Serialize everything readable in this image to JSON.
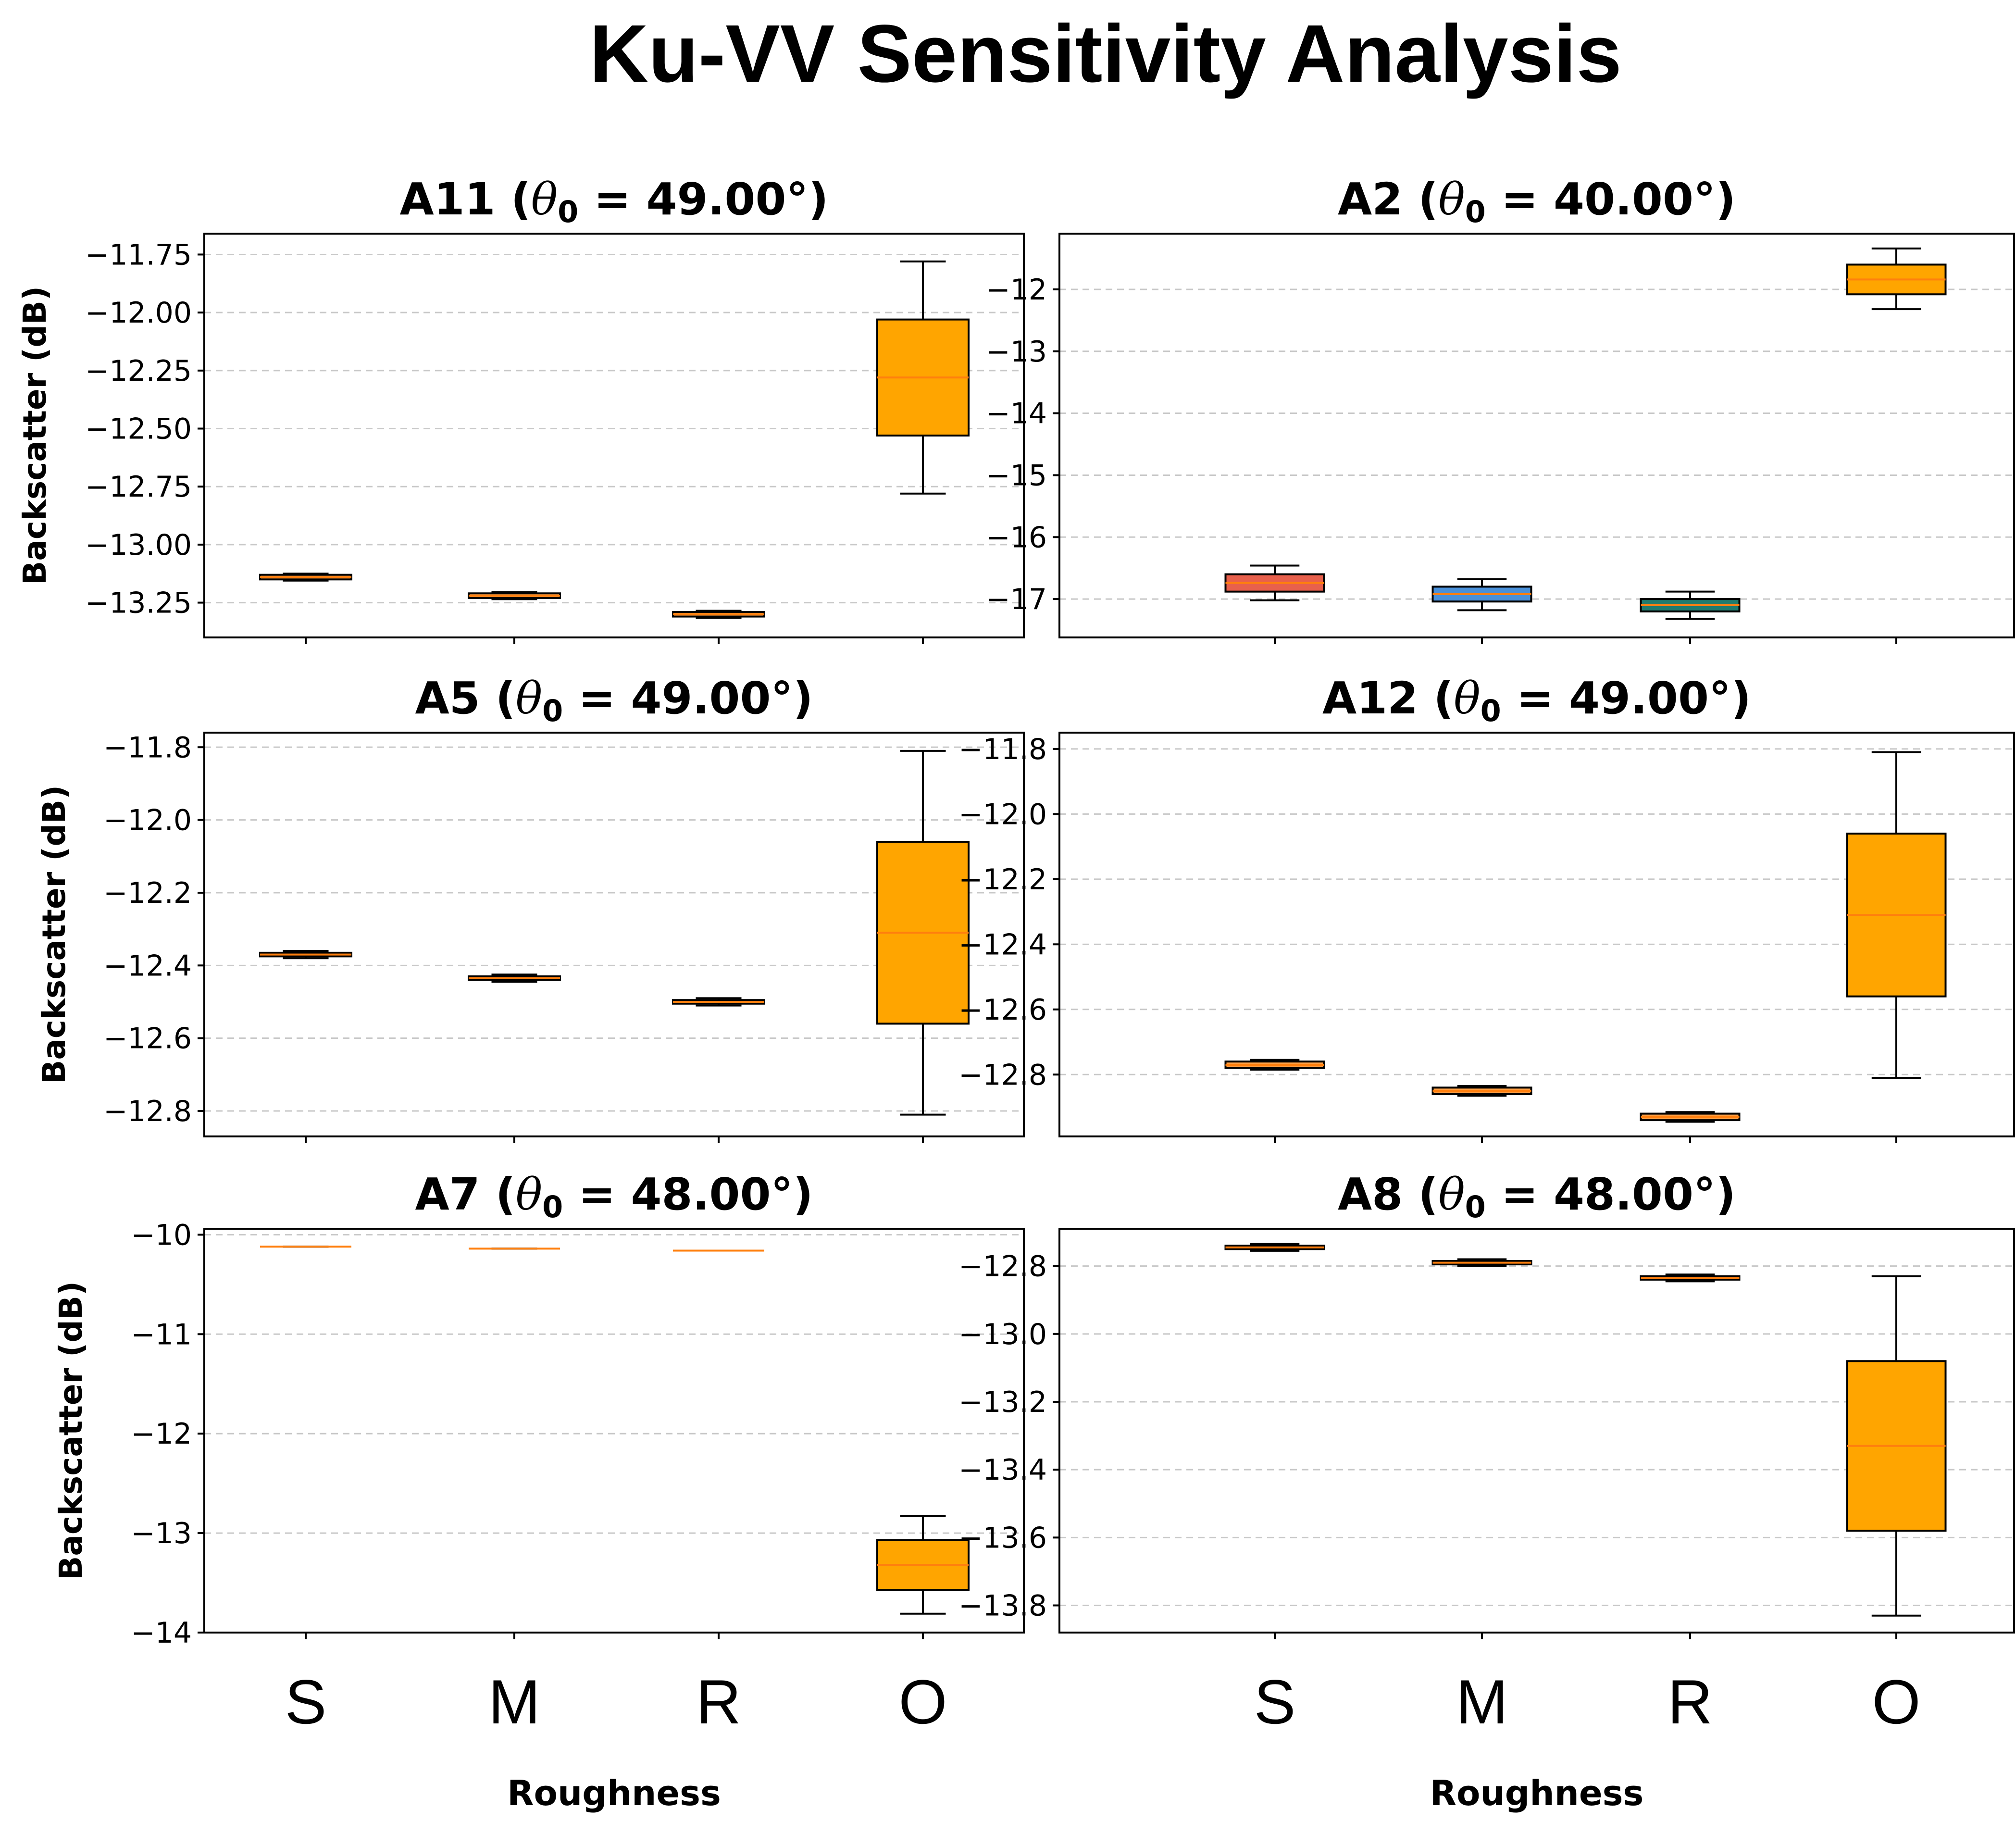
{
  "title": "Ku-VV Sensitivity Analysis",
  "chart_data": [
    {
      "type": "box",
      "title": "A11 (θ0 = 49.00°)",
      "title_parts": {
        "label": "A11",
        "theta": "θ",
        "sub": "0",
        "value": "= 49.00°"
      },
      "ylabel": "Backscatter (dB)",
      "xlabel": "",
      "categories": [
        "S",
        "M",
        "R",
        "O"
      ],
      "ylim": [
        -13.4,
        -11.66
      ],
      "yticks": [
        -11.75,
        -12.0,
        -12.25,
        -12.5,
        -12.75,
        -13.0,
        -13.25
      ],
      "ytick_labels": [
        "−11.75",
        "−12.00",
        "−12.25",
        "−12.50",
        "−12.75",
        "−13.00",
        "−13.25"
      ],
      "grid": true,
      "boxes": [
        {
          "category": "S",
          "whislo": -13.155,
          "q1": -13.15,
          "median": -13.14,
          "q3": -13.13,
          "whishi": -13.125,
          "color": "#ff9f43"
        },
        {
          "category": "M",
          "whislo": -13.235,
          "q1": -13.23,
          "median": -13.22,
          "q3": -13.21,
          "whishi": -13.205,
          "color": "#ff9f43"
        },
        {
          "category": "R",
          "whislo": -13.315,
          "q1": -13.31,
          "median": -13.3,
          "q3": -13.29,
          "whishi": -13.285,
          "color": "#ff9f43"
        },
        {
          "category": "O",
          "whislo": -12.78,
          "q1": -12.53,
          "median": -12.28,
          "q3": -12.03,
          "whishi": -11.78,
          "color": "#ffa500"
        }
      ]
    },
    {
      "type": "box",
      "title": "A2 (θ0 = 40.00°)",
      "title_parts": {
        "label": "A2",
        "theta": "θ",
        "sub": "0",
        "value": "= 40.00°"
      },
      "ylabel": "",
      "xlabel": "",
      "categories": [
        "S",
        "M",
        "R",
        "O"
      ],
      "ylim": [
        -17.62,
        -11.1
      ],
      "yticks": [
        -12,
        -13,
        -14,
        -15,
        -16,
        -17
      ],
      "ytick_labels": [
        "−12",
        "−13",
        "−14",
        "−15",
        "−16",
        "−17"
      ],
      "grid": true,
      "boxes": [
        {
          "category": "S",
          "whislo": -17.02,
          "q1": -16.88,
          "median": -16.74,
          "q3": -16.6,
          "whishi": -16.46,
          "color": "#e8604c"
        },
        {
          "category": "M",
          "whislo": -17.18,
          "q1": -17.04,
          "median": -16.92,
          "q3": -16.8,
          "whishi": -16.68,
          "color": "#4a90d9"
        },
        {
          "category": "R",
          "whislo": -17.32,
          "q1": -17.2,
          "median": -17.1,
          "q3": -17.0,
          "whishi": -16.88,
          "color": "#1f7a6d"
        },
        {
          "category": "O",
          "whislo": -12.32,
          "q1": -12.08,
          "median": -11.84,
          "q3": -11.6,
          "whishi": -11.34,
          "color": "#ffa500"
        }
      ]
    },
    {
      "type": "box",
      "title": "A5 (θ0 = 49.00°)",
      "title_parts": {
        "label": "A5",
        "theta": "θ",
        "sub": "0",
        "value": "= 49.00°"
      },
      "ylabel": "Backscatter (dB)",
      "xlabel": "",
      "categories": [
        "S",
        "M",
        "R",
        "O"
      ],
      "ylim": [
        -12.87,
        -11.76
      ],
      "yticks": [
        -11.8,
        -12.0,
        -12.2,
        -12.4,
        -12.6,
        -12.8
      ],
      "ytick_labels": [
        "−11.8",
        "−12.0",
        "−12.2",
        "−12.4",
        "−12.6",
        "−12.8"
      ],
      "grid": true,
      "boxes": [
        {
          "category": "S",
          "whislo": -12.38,
          "q1": -12.375,
          "median": -12.37,
          "q3": -12.365,
          "whishi": -12.36,
          "color": "#ff9f43"
        },
        {
          "category": "M",
          "whislo": -12.445,
          "q1": -12.44,
          "median": -12.435,
          "q3": -12.43,
          "whishi": -12.425,
          "color": "#ff9f43"
        },
        {
          "category": "R",
          "whislo": -12.51,
          "q1": -12.505,
          "median": -12.5,
          "q3": -12.495,
          "whishi": -12.49,
          "color": "#ff9f43"
        },
        {
          "category": "O",
          "whislo": -12.81,
          "q1": -12.56,
          "median": -12.31,
          "q3": -12.06,
          "whishi": -11.81,
          "color": "#ffa500"
        }
      ]
    },
    {
      "type": "box",
      "title": "A12 (θ0 = 49.00°)",
      "title_parts": {
        "label": "A12",
        "theta": "θ",
        "sub": "0",
        "value": "= 49.00°"
      },
      "ylabel": "",
      "xlabel": "",
      "categories": [
        "S",
        "M",
        "R",
        "O"
      ],
      "ylim": [
        -12.99,
        -11.75
      ],
      "yticks": [
        -11.8,
        -12.0,
        -12.2,
        -12.4,
        -12.6,
        -12.8
      ],
      "ytick_labels": [
        "−11.8",
        "−12.0",
        "−12.2",
        "−12.4",
        "−12.6",
        "−12.8"
      ],
      "grid": true,
      "boxes": [
        {
          "category": "S",
          "whislo": -12.785,
          "q1": -12.78,
          "median": -12.77,
          "q3": -12.76,
          "whishi": -12.755,
          "color": "#ff9f43"
        },
        {
          "category": "M",
          "whislo": -12.865,
          "q1": -12.86,
          "median": -12.85,
          "q3": -12.84,
          "whishi": -12.835,
          "color": "#ff9f43"
        },
        {
          "category": "R",
          "whislo": -12.945,
          "q1": -12.94,
          "median": -12.93,
          "q3": -12.92,
          "whishi": -12.915,
          "color": "#ff9f43"
        },
        {
          "category": "O",
          "whislo": -12.81,
          "q1": -12.56,
          "median": -12.31,
          "q3": -12.06,
          "whishi": -11.81,
          "color": "#ffa500"
        }
      ]
    },
    {
      "type": "box",
      "title": "A7 (θ0 = 48.00°)",
      "title_parts": {
        "label": "A7",
        "theta": "θ",
        "sub": "0",
        "value": "= 48.00°"
      },
      "ylabel": "Backscatter (dB)",
      "xlabel": "Roughness",
      "categories": [
        "S",
        "M",
        "R",
        "O"
      ],
      "ylim": [
        -14.0,
        -9.94
      ],
      "yticks": [
        -10,
        -11,
        -12,
        -13,
        -14
      ],
      "ytick_labels": [
        "−10",
        "−11",
        "−12",
        "−13",
        "−14"
      ],
      "grid": true,
      "boxes": [
        {
          "category": "S",
          "whislo": -10.12,
          "q1": -10.12,
          "median": -10.12,
          "q3": -10.12,
          "whishi": -10.12,
          "color": "#ff9f43"
        },
        {
          "category": "M",
          "whislo": -10.14,
          "q1": -10.14,
          "median": -10.14,
          "q3": -10.14,
          "whishi": -10.14,
          "color": "#ff9f43"
        },
        {
          "category": "R",
          "whislo": -10.16,
          "q1": -10.16,
          "median": -10.16,
          "q3": -10.16,
          "whishi": -10.16,
          "color": "#ff9f43"
        },
        {
          "category": "O",
          "whislo": -13.81,
          "q1": -13.57,
          "median": -13.32,
          "q3": -13.07,
          "whishi": -12.83,
          "color": "#ffa500"
        }
      ]
    },
    {
      "type": "box",
      "title": "A8 (θ0 = 48.00°)",
      "title_parts": {
        "label": "A8",
        "theta": "θ",
        "sub": "0",
        "value": "= 48.00°"
      },
      "ylabel": "",
      "xlabel": "Roughness",
      "categories": [
        "S",
        "M",
        "R",
        "O"
      ],
      "ylim": [
        -13.88,
        -12.69
      ],
      "yticks": [
        -12.8,
        -13.0,
        -13.2,
        -13.4,
        -13.6,
        -13.8
      ],
      "ytick_labels": [
        "−12.8",
        "−13.0",
        "−13.2",
        "−13.4",
        "−13.6",
        "−13.8"
      ],
      "grid": true,
      "boxes": [
        {
          "category": "S",
          "whislo": -12.755,
          "q1": -12.75,
          "median": -12.745,
          "q3": -12.74,
          "whishi": -12.735,
          "color": "#ff9f43"
        },
        {
          "category": "M",
          "whislo": -12.8,
          "q1": -12.795,
          "median": -12.79,
          "q3": -12.785,
          "whishi": -12.78,
          "color": "#ff9f43"
        },
        {
          "category": "R",
          "whislo": -12.845,
          "q1": -12.84,
          "median": -12.835,
          "q3": -12.83,
          "whishi": -12.825,
          "color": "#ff9f43"
        },
        {
          "category": "O",
          "whislo": -13.83,
          "q1": -13.58,
          "median": -13.33,
          "q3": -13.08,
          "whishi": -12.83,
          "color": "#ffa500"
        }
      ]
    }
  ]
}
